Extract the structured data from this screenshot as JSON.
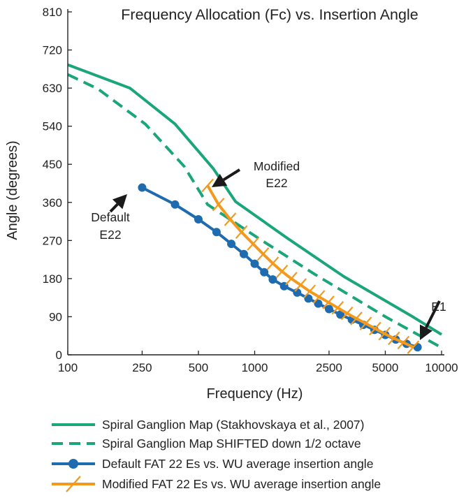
{
  "chart_data": {
    "type": "line",
    "title": "Frequency Allocation (Fc) vs. Insertion Angle",
    "xlabel": "Frequency (Hz)",
    "ylabel": "Angle (degrees)",
    "xscale": "log",
    "xlim": [
      100,
      10000
    ],
    "ylim": [
      0,
      810
    ],
    "xticks": [
      100,
      250,
      500,
      1000,
      2500,
      5000,
      10000
    ],
    "xtick_labels": [
      "100",
      "250",
      "500",
      "1000",
      "2500",
      "5000",
      "10000"
    ],
    "yticks": [
      0,
      90,
      180,
      270,
      360,
      450,
      540,
      630,
      720,
      810
    ],
    "ytick_labels": [
      "0",
      "90",
      "180",
      "270",
      "360",
      "450",
      "540",
      "630",
      "720",
      "810"
    ],
    "series": [
      {
        "name": "Spiral Ganglion Map (Stakhovskaya et al., 2007)",
        "color": "#1aa67a",
        "style": "solid",
        "x": [
          100,
          215,
          375,
          600,
          790,
          1500,
          3000,
          7000,
          10000
        ],
        "y": [
          685,
          630,
          545,
          440,
          362,
          275,
          185,
          90,
          48
        ]
      },
      {
        "name": "Spiral Ganglion Map SHIFTED down 1/2 octave",
        "color": "#1aa67a",
        "style": "dashed",
        "x": [
          100,
          145,
          260,
          420,
          560,
          1050,
          2100,
          5000,
          10000
        ],
        "y": [
          662,
          628,
          545,
          445,
          355,
          275,
          190,
          90,
          17
        ]
      },
      {
        "name": "Default FAT 22 Es vs. WU average insertion angle",
        "color": "#1f6bb0",
        "style": "solid-markers",
        "x": [
          250,
          375,
          500,
          625,
          750,
          875,
          1000,
          1125,
          1250,
          1438,
          1688,
          1938,
          2188,
          2500,
          2875,
          3313,
          3813,
          4375,
          5000,
          5688,
          6500,
          7438
        ],
        "y": [
          395,
          355,
          320,
          290,
          262,
          238,
          215,
          195,
          178,
          162,
          147,
          133,
          121,
          108,
          95,
          83,
          71,
          59,
          47,
          36,
          26,
          18
        ]
      },
      {
        "name": "Modified FAT 22 Es vs. WU average insertion angle",
        "color": "#f39a1e",
        "style": "solid-ticks",
        "x": [
          560,
          640,
          740,
          850,
          980,
          1110,
          1250,
          1400,
          1570,
          1760,
          1970,
          2210,
          2480,
          2780,
          3120,
          3500,
          3930,
          4410,
          4950,
          5560,
          6250,
          7050
        ],
        "y": [
          400,
          355,
          320,
          290,
          262,
          238,
          216,
          197,
          180,
          165,
          150,
          137,
          124,
          111,
          98,
          86,
          74,
          62,
          50,
          39,
          29,
          18
        ]
      }
    ],
    "annotations": [
      {
        "text": "Modified",
        "line2": "E22"
      },
      {
        "text": "Default",
        "line2": "E22"
      },
      {
        "text": "E1"
      }
    ]
  }
}
